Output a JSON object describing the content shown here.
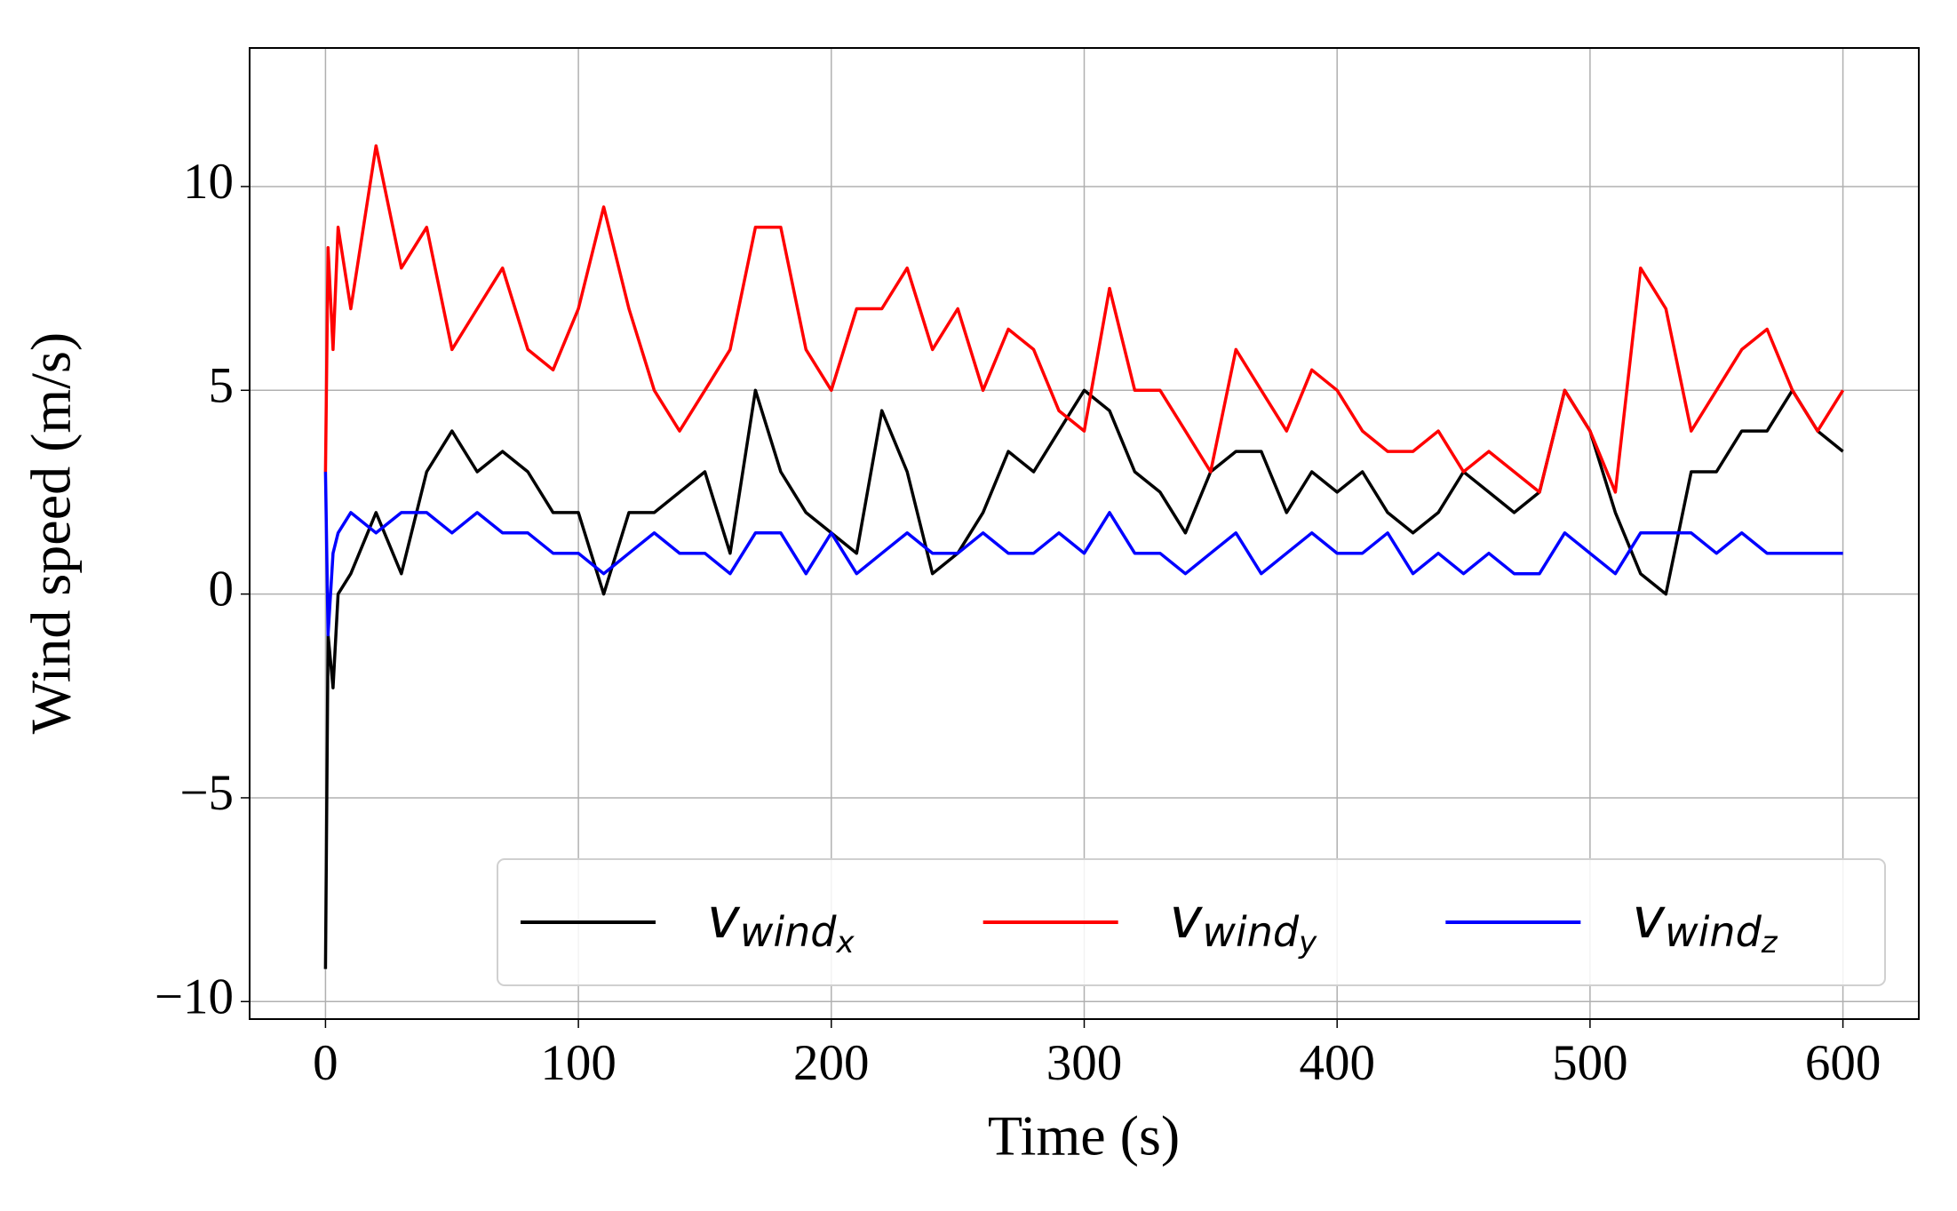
{
  "chart_data": {
    "type": "line",
    "xlabel": "Time (s)",
    "ylabel": "Wind speed (m/s)",
    "x": [
      0,
      1,
      3,
      5,
      10,
      20,
      30,
      40,
      50,
      60,
      70,
      80,
      90,
      100,
      110,
      120,
      130,
      140,
      150,
      160,
      170,
      180,
      190,
      200,
      210,
      220,
      230,
      240,
      250,
      260,
      270,
      280,
      290,
      300,
      310,
      320,
      330,
      340,
      350,
      360,
      370,
      380,
      390,
      400,
      410,
      420,
      430,
      440,
      450,
      460,
      470,
      480,
      490,
      500,
      510,
      520,
      530,
      540,
      550,
      560,
      570,
      580,
      590,
      600
    ],
    "series": [
      {
        "name": "vwindx",
        "color": "#000000",
        "values": [
          -9.2,
          -1,
          -2.3,
          0,
          0.5,
          2,
          0.5,
          3,
          4,
          3,
          3.5,
          3,
          2,
          2,
          0,
          2,
          2,
          2.5,
          3,
          1,
          5,
          3,
          2,
          1.5,
          1,
          4.5,
          3,
          0.5,
          1,
          2,
          3.5,
          3,
          4,
          5,
          4.5,
          3,
          2.5,
          1.5,
          3,
          3.5,
          3.5,
          2,
          3,
          2.5,
          3,
          2,
          1.5,
          2,
          3,
          2.5,
          2,
          2.5,
          5,
          4,
          2,
          0.5,
          0,
          3,
          3,
          4,
          4,
          5,
          4,
          3.5
        ]
      },
      {
        "name": "vwindy",
        "color": "#ff0000",
        "values": [
          3,
          8.5,
          6,
          9,
          7,
          11,
          8,
          9,
          6,
          7,
          8,
          6,
          5.5,
          7,
          9.5,
          7,
          5,
          4,
          5,
          6,
          9,
          9,
          6,
          5,
          7,
          7,
          8,
          6,
          7,
          5,
          6.5,
          6,
          4.5,
          4,
          7.5,
          5,
          5,
          4,
          3,
          6,
          5,
          4,
          5.5,
          5,
          4,
          3.5,
          3.5,
          4,
          3,
          3.5,
          3,
          2.5,
          5,
          4,
          2.5,
          8,
          7,
          4,
          5,
          6,
          6.5,
          5,
          4,
          5
        ]
      },
      {
        "name": "vwindz",
        "color": "#0000ff",
        "values": [
          3,
          -1,
          1,
          1.5,
          2,
          1.5,
          2,
          2,
          1.5,
          2,
          1.5,
          1.5,
          1,
          1,
          0.5,
          1,
          1.5,
          1,
          1,
          0.5,
          1.5,
          1.5,
          0.5,
          1.5,
          0.5,
          1,
          1.5,
          1,
          1,
          1.5,
          1,
          1,
          1.5,
          1,
          2,
          1,
          1,
          0.5,
          1,
          1.5,
          0.5,
          1,
          1.5,
          1,
          1,
          1.5,
          0.5,
          1,
          0.5,
          1,
          0.5,
          0.5,
          1.5,
          1,
          0.5,
          1.5,
          1.5,
          1.5,
          1,
          1.5,
          1,
          1,
          1,
          1
        ]
      }
    ],
    "xlim": [
      -30,
      630
    ],
    "xticks": [
      0,
      100,
      200,
      300,
      400,
      500,
      600
    ],
    "ylim": [
      -10.43,
      13.4
    ],
    "yticks": [
      {
        "value": -10,
        "label": "−10"
      },
      {
        "value": -5,
        "label": "−5"
      },
      0,
      5,
      10
    ],
    "grid": true,
    "legend": "lower right"
  }
}
